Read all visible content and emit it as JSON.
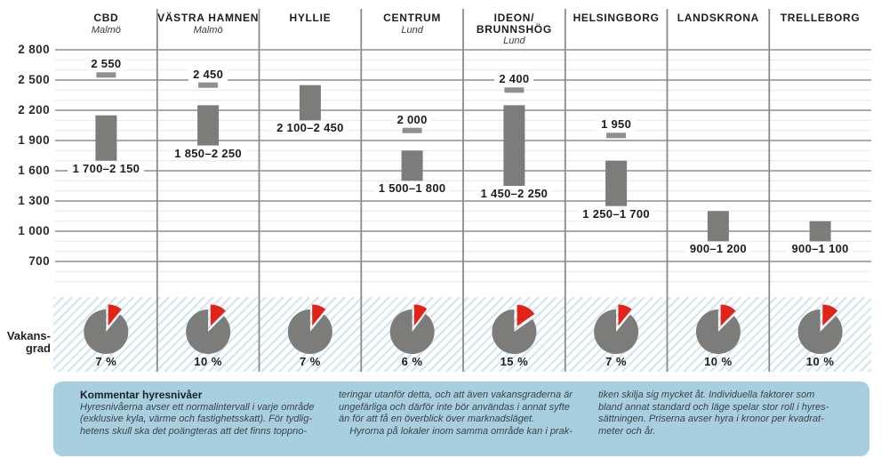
{
  "colors": {
    "bar_gray": "#7c7c7a",
    "marker_gray": "#8f8f8d",
    "accent_red": "#e2231a",
    "grid_major": "#787878",
    "grid_minor": "#e6e6e6",
    "column_divider": "#8a8a8a",
    "hatch_stripe": "#cfe4ef",
    "comment_bg": "#a8cfe0"
  },
  "vacancy_row_label": [
    "Vakans-",
    "grad"
  ],
  "chart_data": {
    "type": "bar",
    "subtype": "floating range bars with top markers and exploded vacancy pies",
    "ylim": [
      400,
      2900
    ],
    "grid": true,
    "y_ticks": [
      2800,
      2500,
      2200,
      1900,
      1600,
      1300,
      1000,
      700
    ],
    "y_tick_labels": [
      "2 800",
      "2 500",
      "2 200",
      "1 900",
      "1 600",
      "1 300",
      "1 000",
      "700"
    ],
    "columns": [
      {
        "name_lines": [
          "CBD"
        ],
        "city": "Malmö",
        "low": 1700,
        "high": 2150,
        "range_label": "1 700–2 150",
        "top_value": 2550,
        "top_label": "2 550",
        "vacancy_pct": 7,
        "vacancy_label": "7 %"
      },
      {
        "name_lines": [
          "VÄSTRA HAMNEN"
        ],
        "city": "Malmö",
        "low": 1850,
        "high": 2250,
        "range_label": "1 850–2 250",
        "top_value": 2450,
        "top_label": "2 450",
        "vacancy_pct": 10,
        "vacancy_label": "10 %"
      },
      {
        "name_lines": [
          "HYLLIE"
        ],
        "city": "",
        "low": 2100,
        "high": 2450,
        "range_label": "2 100–2 450",
        "top_value": null,
        "top_label": "",
        "vacancy_pct": 7,
        "vacancy_label": "7 %"
      },
      {
        "name_lines": [
          "CENTRUM"
        ],
        "city": "Lund",
        "low": 1500,
        "high": 1800,
        "range_label": "1 500–1 800",
        "top_value": 2000,
        "top_label": "2 000",
        "vacancy_pct": 6,
        "vacancy_label": "6 %"
      },
      {
        "name_lines": [
          "IDEON/",
          "BRUNNSHÖG"
        ],
        "city": "Lund",
        "low": 1450,
        "high": 2250,
        "range_label": "1 450–2 250",
        "top_value": 2400,
        "top_label": "2 400",
        "vacancy_pct": 15,
        "vacancy_label": "15 %"
      },
      {
        "name_lines": [
          "HELSINGBORG"
        ],
        "city": "",
        "low": 1250,
        "high": 1700,
        "range_label": "1 250–1 700",
        "top_value": 1950,
        "top_label": "1 950",
        "vacancy_pct": 7,
        "vacancy_label": "7 %"
      },
      {
        "name_lines": [
          "LANDSKRONA"
        ],
        "city": "",
        "low": 900,
        "high": 1200,
        "range_label": "900–1 200",
        "top_value": null,
        "top_label": "",
        "vacancy_pct": 10,
        "vacancy_label": "10 %"
      },
      {
        "name_lines": [
          "TRELLEBORG"
        ],
        "city": "",
        "low": 900,
        "high": 1100,
        "range_label": "900–1 100",
        "top_value": null,
        "top_label": "",
        "vacancy_pct": 10,
        "vacancy_label": "10 %"
      }
    ]
  },
  "comment": {
    "title": "Kommentar hyresnivåer",
    "columns": [
      {
        "lines": [
          "Hyresnivåerna avser ett normalintervall i varje område",
          "(exklusive kyla, värme och fastighetsskatt). För tydlig-",
          "hetens skull ska det poängteras att det finns toppno-"
        ]
      },
      {
        "lines": [
          "teringar utanför detta, och att även vakansgraderna är",
          "ungefärliga och därför inte bör användas i annat syfte",
          "än för att få en överblick över marknadsläget.",
          "    Hyrorna på lokaler inom samma område kan i prak-"
        ]
      },
      {
        "lines": [
          "tiken skilja sig mycket åt. Individuella faktorer som",
          "bland annat standard och läge spelar stor roll i hyres-",
          "sättningen. Priserna avser hyra i kronor per kvadrat-",
          "meter och år."
        ]
      }
    ]
  }
}
